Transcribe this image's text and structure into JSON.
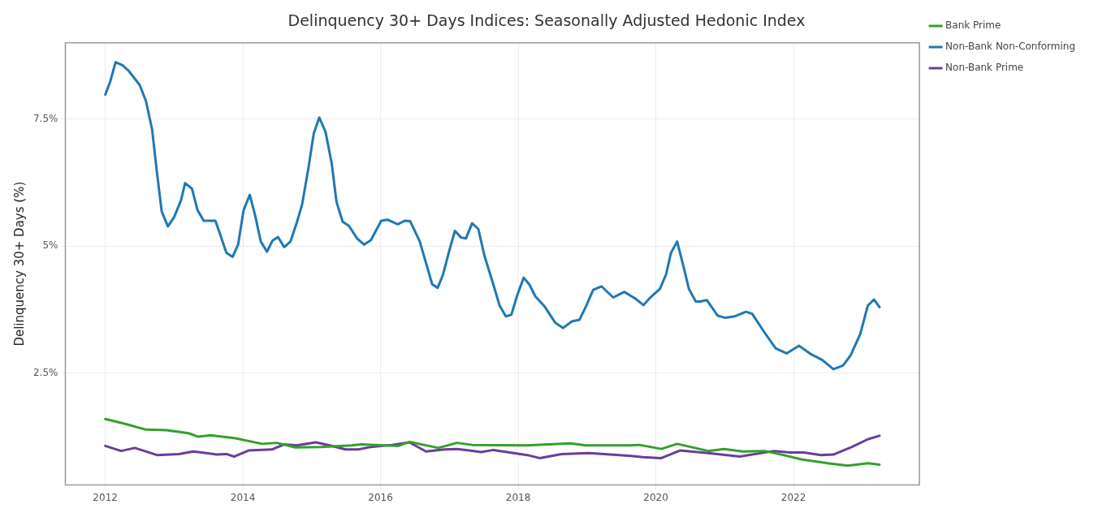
{
  "chart_data": {
    "type": "line",
    "title": "Delinquency 30+ Days Indices: Seasonally Adjusted Hedonic Index",
    "ylabel": "Delinquency 30+ Days (%)",
    "xlim": [
      2011.42,
      2023.83
    ],
    "xticks": [
      2012,
      2014,
      2016,
      2018,
      2020,
      2022
    ],
    "ylim": [
      0.3,
      9.0
    ],
    "yticks": [
      {
        "value": 2.5,
        "label": "2.5%"
      },
      {
        "value": 5,
        "label": "5%"
      },
      {
        "value": 7.5,
        "label": "7.5%"
      }
    ],
    "grid": true,
    "legend": "right",
    "marker": "none",
    "line_style": "solid",
    "series": [
      {
        "name": "Bank Prime",
        "color": "#33a02c",
        "x": [
          2012.0,
          2012.3,
          2012.59,
          2012.89,
          2013.21,
          2013.35,
          2013.53,
          2013.89,
          2014.28,
          2014.49,
          2014.76,
          2015.13,
          2015.58,
          2015.72,
          2016.26,
          2016.42,
          2016.84,
          2017.11,
          2017.33,
          2018.13,
          2018.76,
          2018.98,
          2019.61,
          2019.76,
          2020.08,
          2020.31,
          2020.76,
          2020.99,
          2021.26,
          2021.58,
          2021.85,
          2022.13,
          2022.49,
          2022.79,
          2023.08,
          2023.25
        ],
        "values": [
          1.6,
          1.5,
          1.39,
          1.38,
          1.32,
          1.25,
          1.28,
          1.22,
          1.11,
          1.13,
          1.04,
          1.05,
          1.08,
          1.1,
          1.07,
          1.15,
          1.03,
          1.13,
          1.09,
          1.08,
          1.12,
          1.08,
          1.08,
          1.09,
          1.01,
          1.11,
          0.97,
          1.01,
          0.96,
          0.97,
          0.89,
          0.8,
          0.73,
          0.68,
          0.73,
          0.7
        ]
      },
      {
        "name": "Non-Bank Non-Conforming",
        "color": "#1f78b4",
        "x": [
          2012.0,
          2012.07,
          2012.15,
          2012.25,
          2012.34,
          2012.5,
          2012.59,
          2012.68,
          2012.75,
          2012.82,
          2012.91,
          2013.0,
          2013.1,
          2013.16,
          2013.26,
          2013.34,
          2013.43,
          2013.6,
          2013.67,
          2013.76,
          2013.85,
          2013.93,
          2014.01,
          2014.1,
          2014.18,
          2014.26,
          2014.35,
          2014.43,
          2014.51,
          2014.6,
          2014.69,
          2014.78,
          2014.86,
          2014.95,
          2015.03,
          2015.11,
          2015.2,
          2015.29,
          2015.36,
          2015.45,
          2015.54,
          2015.66,
          2015.76,
          2015.86,
          2016.01,
          2016.1,
          2016.25,
          2016.35,
          2016.43,
          2016.57,
          2016.66,
          2016.75,
          2016.83,
          2016.91,
          2017.0,
          2017.08,
          2017.17,
          2017.24,
          2017.33,
          2017.42,
          2017.51,
          2017.62,
          2017.73,
          2017.82,
          2017.9,
          2017.99,
          2018.08,
          2018.16,
          2018.25,
          2018.38,
          2018.54,
          2018.65,
          2018.78,
          2018.89,
          2018.98,
          2019.09,
          2019.21,
          2019.38,
          2019.54,
          2019.7,
          2019.82,
          2019.92,
          2020.06,
          2020.15,
          2020.22,
          2020.31,
          2020.4,
          2020.48,
          2020.58,
          2020.65,
          2020.74,
          2020.9,
          2021.01,
          2021.15,
          2021.31,
          2021.4,
          2021.58,
          2021.74,
          2021.9,
          2022.08,
          2022.26,
          2022.42,
          2022.58,
          2022.72,
          2022.83,
          2022.97,
          2023.08,
          2023.17,
          2023.25
        ],
        "values": [
          7.98,
          8.23,
          8.62,
          8.56,
          8.45,
          8.17,
          7.86,
          7.3,
          6.46,
          5.68,
          5.39,
          5.57,
          5.9,
          6.24,
          6.13,
          5.71,
          5.5,
          5.5,
          5.23,
          4.87,
          4.79,
          5.03,
          5.71,
          6.01,
          5.59,
          5.09,
          4.89,
          5.11,
          5.18,
          4.98,
          5.09,
          5.45,
          5.82,
          6.52,
          7.22,
          7.53,
          7.25,
          6.63,
          5.87,
          5.48,
          5.4,
          5.15,
          5.03,
          5.12,
          5.5,
          5.52,
          5.43,
          5.5,
          5.49,
          5.09,
          4.67,
          4.25,
          4.18,
          4.45,
          4.92,
          5.3,
          5.17,
          5.15,
          5.45,
          5.34,
          4.81,
          4.33,
          3.83,
          3.62,
          3.65,
          4.05,
          4.38,
          4.25,
          4.01,
          3.82,
          3.49,
          3.39,
          3.52,
          3.55,
          3.8,
          4.14,
          4.21,
          3.99,
          4.1,
          3.97,
          3.84,
          3.99,
          4.16,
          4.45,
          4.87,
          5.09,
          4.61,
          4.16,
          3.91,
          3.91,
          3.94,
          3.63,
          3.59,
          3.62,
          3.71,
          3.67,
          3.3,
          2.99,
          2.89,
          3.04,
          2.87,
          2.76,
          2.58,
          2.65,
          2.85,
          3.27,
          3.83,
          3.95,
          3.8
        ]
      },
      {
        "name": "Non-Bank Prime",
        "color": "#6a3d9a",
        "x": [
          2012.0,
          2012.23,
          2012.43,
          2012.75,
          2013.07,
          2013.28,
          2013.62,
          2013.76,
          2013.87,
          2014.08,
          2014.42,
          2014.6,
          2014.78,
          2015.06,
          2015.26,
          2015.49,
          2015.68,
          2015.86,
          2016.17,
          2016.42,
          2016.66,
          2016.93,
          2017.11,
          2017.29,
          2017.46,
          2017.64,
          2018.13,
          2018.31,
          2018.63,
          2019.03,
          2019.47,
          2019.67,
          2019.81,
          2020.08,
          2020.35,
          2020.76,
          2020.95,
          2021.22,
          2021.72,
          2021.95,
          2022.15,
          2022.4,
          2022.58,
          2022.85,
          2023.08,
          2023.25
        ],
        "values": [
          1.07,
          0.97,
          1.03,
          0.89,
          0.91,
          0.96,
          0.9,
          0.91,
          0.86,
          0.98,
          1.0,
          1.1,
          1.08,
          1.14,
          1.08,
          1.0,
          1.0,
          1.05,
          1.09,
          1.14,
          0.96,
          1.0,
          1.01,
          0.98,
          0.95,
          0.99,
          0.89,
          0.83,
          0.91,
          0.93,
          0.89,
          0.87,
          0.85,
          0.83,
          0.98,
          0.93,
          0.9,
          0.86,
          0.97,
          0.94,
          0.94,
          0.89,
          0.9,
          1.05,
          1.2,
          1.27
        ]
      }
    ]
  }
}
